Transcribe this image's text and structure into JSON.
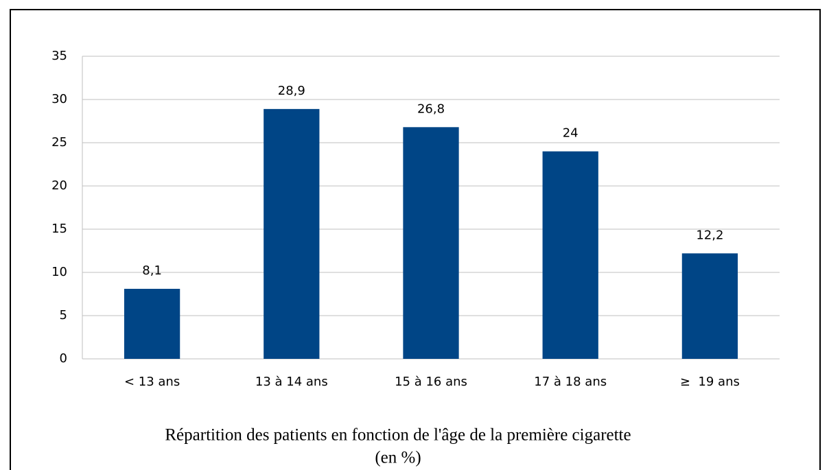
{
  "chart_data": {
    "type": "bar",
    "title": "Répartition des patients en fonction de l'âge de la première cigarette",
    "subtitle": "(en %)",
    "categories": [
      "< 13 ans",
      "13 à 14 ans",
      "15 à 16 ans",
      "17 à 18 ans",
      "≥  19 ans"
    ],
    "values": [
      8.1,
      28.9,
      26.8,
      24,
      12.2
    ],
    "value_labels": [
      "8,1",
      "28,9",
      "26,8",
      "24",
      "12,2"
    ],
    "color": "#004586",
    "ylim": [
      0,
      35
    ],
    "yticks": [
      0,
      5,
      10,
      15,
      20,
      25,
      30,
      35
    ],
    "grid": true
  }
}
